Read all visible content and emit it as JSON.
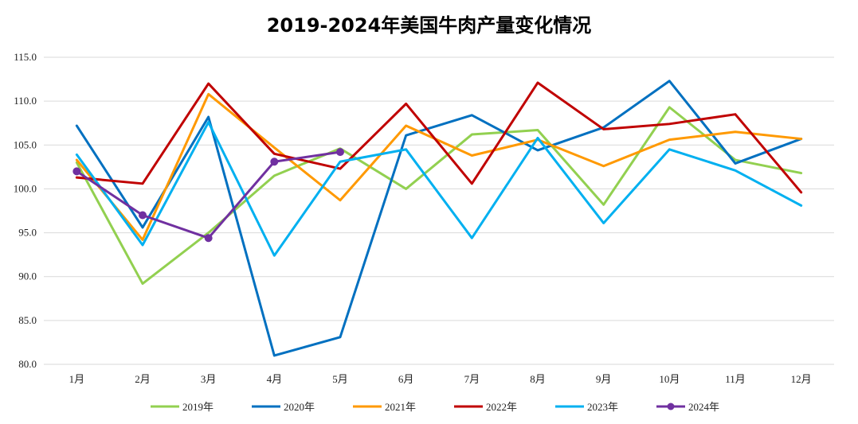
{
  "chart_data": {
    "type": "line",
    "title": "2019-2024年美国牛肉产量变化情况",
    "xlabel": "",
    "ylabel": "",
    "categories": [
      "1月",
      "2月",
      "3月",
      "4月",
      "5月",
      "6月",
      "7月",
      "8月",
      "9月",
      "10月",
      "11月",
      "12月"
    ],
    "y_ticks": [
      "80.0",
      "85.0",
      "90.0",
      "95.0",
      "100.0",
      "105.0",
      "110.0",
      "115.0"
    ],
    "ylim": [
      80,
      115
    ],
    "grid": true,
    "legend_position": "bottom",
    "series": [
      {
        "name": "2019年",
        "color": "#92d050",
        "marker": "none",
        "values": [
          103.0,
          89.2,
          95.0,
          101.5,
          104.6,
          100.0,
          106.2,
          106.7,
          98.2,
          109.3,
          103.3,
          101.8
        ]
      },
      {
        "name": "2020年",
        "color": "#0070c0",
        "marker": "none",
        "values": [
          107.2,
          95.6,
          108.2,
          81.0,
          83.1,
          106.1,
          108.4,
          104.4,
          107.0,
          112.3,
          102.9,
          105.7
        ]
      },
      {
        "name": "2021年",
        "color": "#ff9900",
        "marker": "none",
        "values": [
          103.3,
          94.2,
          110.8,
          104.7,
          98.7,
          107.2,
          103.8,
          105.6,
          102.6,
          105.6,
          106.5,
          105.7
        ]
      },
      {
        "name": "2022年",
        "color": "#c00000",
        "marker": "none",
        "values": [
          101.3,
          100.6,
          112.0,
          104.0,
          102.3,
          109.7,
          100.6,
          112.1,
          106.8,
          107.4,
          108.5,
          99.6
        ]
      },
      {
        "name": "2023年",
        "color": "#00b0f0",
        "marker": "none",
        "values": [
          103.9,
          93.6,
          107.6,
          92.4,
          103.1,
          104.5,
          94.4,
          105.8,
          96.1,
          104.5,
          102.1,
          98.1
        ]
      },
      {
        "name": "2024年",
        "color": "#7030a0",
        "marker": "circle",
        "values": [
          102.0,
          97.0,
          94.4,
          103.1,
          104.2,
          null,
          null,
          null,
          null,
          null,
          null,
          null
        ]
      }
    ]
  }
}
